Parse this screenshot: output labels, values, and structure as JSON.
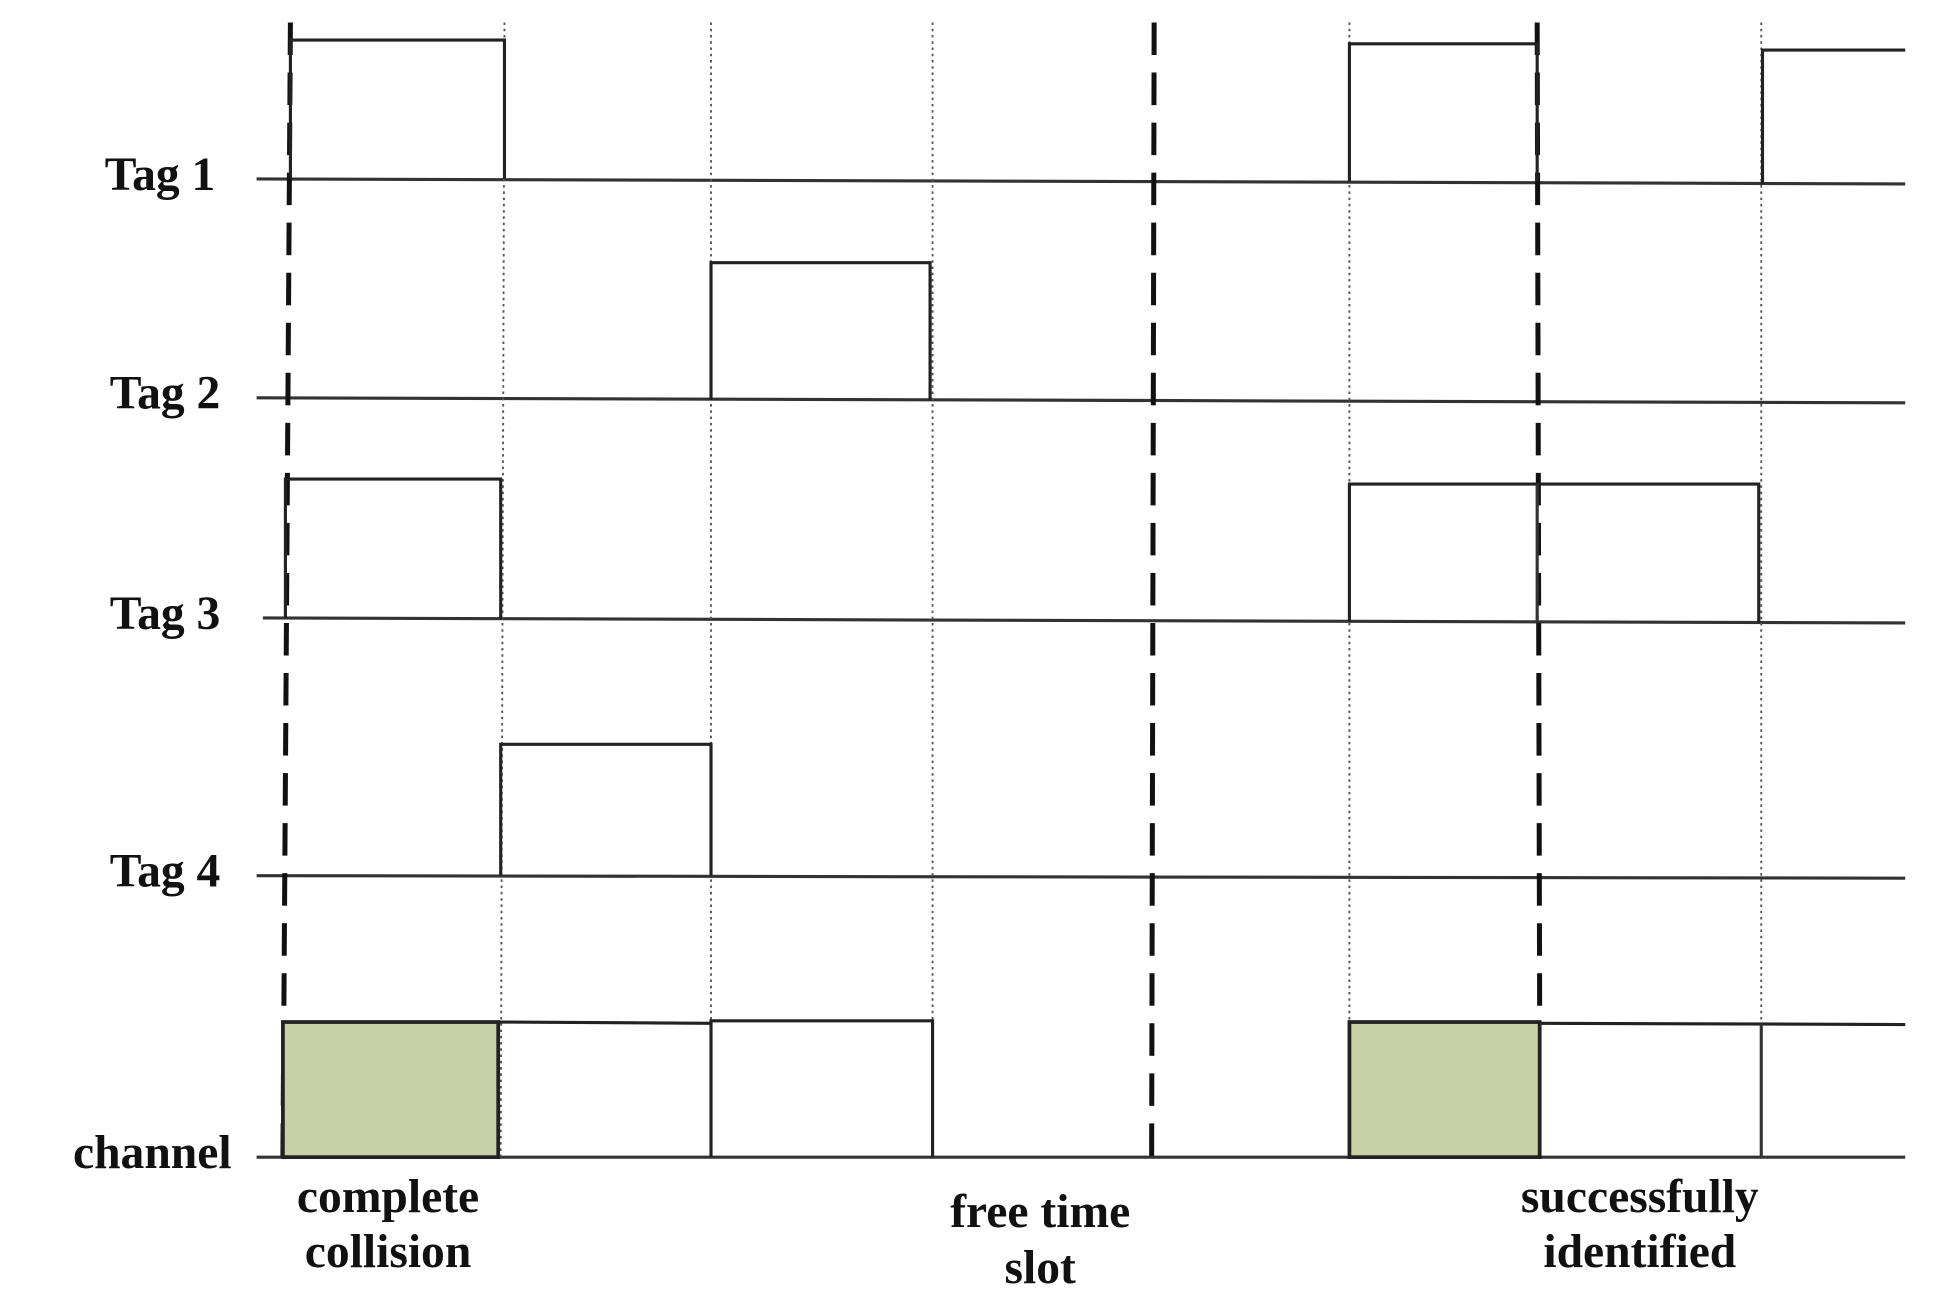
{
  "rows": [
    "Tag 1",
    "Tag 2",
    "Tag 3",
    "Tag 4",
    "channel"
  ],
  "annotations": [
    {
      "lines": [
        "complete",
        "collision"
      ]
    },
    {
      "lines": [
        "free time",
        "slot"
      ]
    },
    {
      "lines": [
        "successfully",
        "identified"
      ]
    }
  ]
}
